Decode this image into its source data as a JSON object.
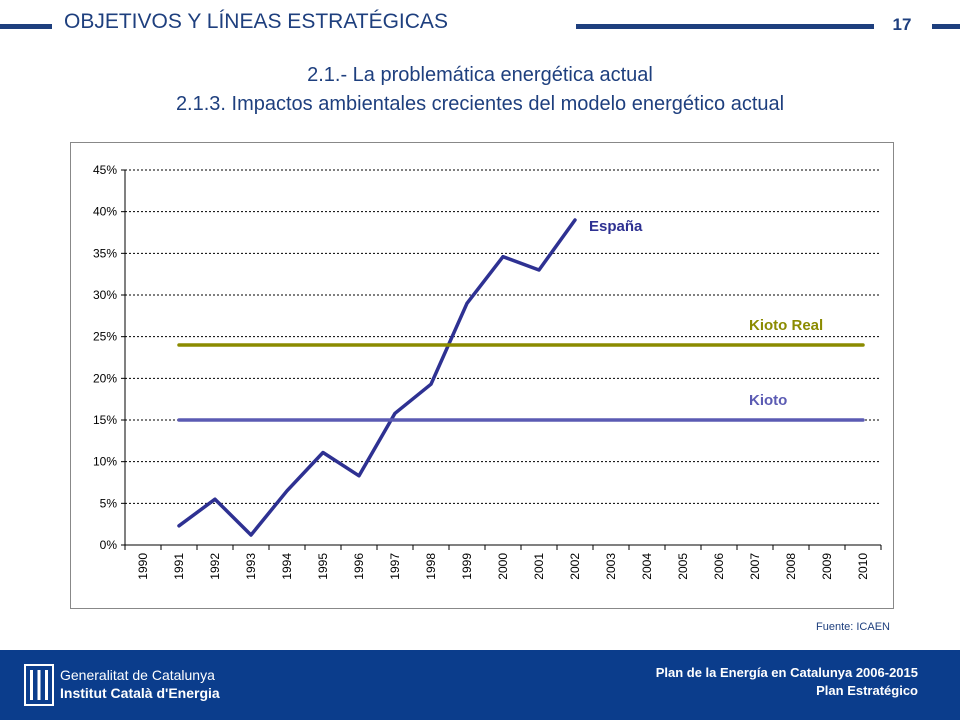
{
  "header": {
    "section_title": "OBJETIVOS Y LÍNEAS ESTRATÉGICAS",
    "page_number": "17"
  },
  "titles": {
    "line1": "2.1.- La problemática energética actual",
    "line2": "2.1.3. Impactos ambientales crecientes del modelo energético actual"
  },
  "chart_data": {
    "type": "line",
    "x": [
      "1990",
      "1991",
      "1992",
      "1993",
      "1994",
      "1995",
      "1996",
      "1997",
      "1998",
      "1999",
      "2000",
      "2001",
      "2002",
      "2003",
      "2004",
      "2005",
      "2006",
      "2007",
      "2008",
      "2009",
      "2010"
    ],
    "yticks": [
      "0%",
      "5%",
      "10%",
      "15%",
      "20%",
      "25%",
      "30%",
      "35%",
      "40%",
      "45%"
    ],
    "ylim": [
      0,
      45
    ],
    "grid": true,
    "series": [
      {
        "name": "España",
        "color": "#2e3192",
        "values": [
          null,
          2.3,
          5.5,
          1.2,
          6.5,
          11.1,
          8.3,
          15.8,
          19.3,
          29.0,
          34.6,
          33.0,
          39.0,
          null,
          null,
          null,
          null,
          null,
          null,
          null,
          null
        ]
      },
      {
        "name": "Kioto Real",
        "color": "#8b8b00",
        "values": [
          null,
          24,
          24,
          24,
          24,
          24,
          24,
          24,
          24,
          24,
          24,
          24,
          24,
          24,
          24,
          24,
          24,
          24,
          24,
          24,
          24
        ]
      },
      {
        "name": "Kioto",
        "color": "#5b5bb3",
        "values": [
          null,
          15,
          15,
          15,
          15,
          15,
          15,
          15,
          15,
          15,
          15,
          15,
          15,
          15,
          15,
          15,
          15,
          15,
          15,
          15,
          15
        ]
      }
    ]
  },
  "source_note": "Fuente: ICAEN",
  "footer": {
    "logo_line1": "Generalitat de Catalunya",
    "logo_line2": "Institut Català d'Energia",
    "plan_line1": "Plan de la Energía en Catalunya 2006-2015",
    "plan_line2": "Plan Estratégico"
  }
}
